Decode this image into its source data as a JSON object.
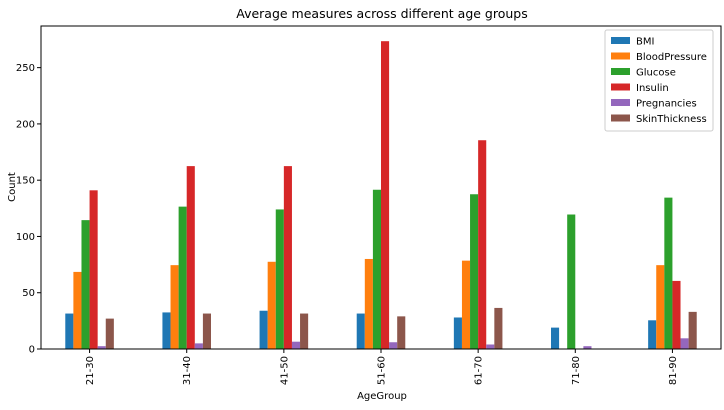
{
  "chart_data": {
    "type": "bar",
    "title": "Average measures across different age groups",
    "xlabel": "AgeGroup",
    "ylabel": "Count",
    "ylim": [
      0,
      287
    ],
    "yticks": [
      0,
      50,
      100,
      150,
      200,
      250
    ],
    "grid": false,
    "legend_position": "top-right",
    "categories": [
      "21-30",
      "31-40",
      "41-50",
      "51-60",
      "61-70",
      "71-80",
      "81-90"
    ],
    "series": [
      {
        "name": "BMI",
        "color": "#1f77b4",
        "values": [
          31.5,
          32.5,
          34,
          31.5,
          28,
          19,
          25.5
        ]
      },
      {
        "name": "BloodPressure",
        "color": "#ff7f0e",
        "values": [
          68.5,
          74.5,
          77.5,
          80,
          78.5,
          0,
          74.5
        ]
      },
      {
        "name": "Glucose",
        "color": "#2ca02c",
        "values": [
          114.5,
          126.5,
          124,
          141.5,
          137.5,
          119.5,
          134.5
        ]
      },
      {
        "name": "Insulin",
        "color": "#d62728",
        "values": [
          141,
          162.5,
          162.5,
          273.5,
          185.5,
          0,
          60.5
        ]
      },
      {
        "name": "Pregnancies",
        "color": "#9467bd",
        "values": [
          2.5,
          5,
          6.5,
          6,
          4,
          2.5,
          9.5
        ]
      },
      {
        "name": "SkinThickness",
        "color": "#8c564b",
        "values": [
          27,
          31.5,
          31.5,
          29,
          36.5,
          0,
          33
        ]
      }
    ]
  }
}
